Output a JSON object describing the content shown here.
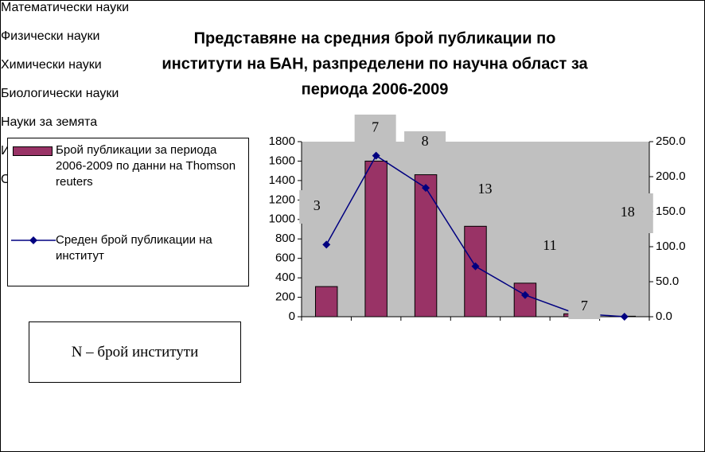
{
  "chart_data": {
    "type": "bar",
    "title": "Представяне на средния брой публикации по институти на БАН, разпределени по научна област за периода 2006-2009",
    "title_lines": [
      "Представяне на средния брой публикации по",
      "институти на БАН, разпределени по научна област за",
      "периода 2006-2009"
    ],
    "categories": [
      "Математически\nнауки",
      "Физически\nнауки",
      "Химически\nнауки",
      "Биологически\nнауки",
      "Науки за\nземята",
      "Инженерни\nнауки",
      "Обществени и\nхуманитарни"
    ],
    "series": [
      {
        "name": "Брой публикации за периода 2006-2009 по данни на Thomson reuters",
        "color": "#993366",
        "type": "bar",
        "values": [
          310,
          1600,
          1460,
          930,
          345,
          30,
          5
        ]
      },
      {
        "name": "Среден брой публикации на институт",
        "color": "#000080",
        "type": "line",
        "axis": "y2",
        "values": [
          103,
          230,
          184,
          72,
          31,
          5,
          0
        ]
      }
    ],
    "annotations": [
      "3",
      "7",
      "8",
      "13",
      "11",
      "7",
      "18"
    ],
    "note": "N – брой институти",
    "ylim": [
      0,
      1800
    ],
    "yticks": [
      0,
      200,
      400,
      600,
      800,
      1000,
      1200,
      1400,
      1600,
      1800
    ],
    "y2lim": [
      0,
      250
    ],
    "y2ticks": [
      {
        "value": 0,
        "label": "0.0"
      },
      {
        "value": 50,
        "label": "50.0"
      },
      {
        "value": 100,
        "label": "100.0"
      },
      {
        "value": 150,
        "label": "150.0"
      },
      {
        "value": 200,
        "label": "200.0"
      },
      {
        "value": 250,
        "label": "250.0"
      }
    ],
    "plot_background": "#c0c0c0"
  }
}
